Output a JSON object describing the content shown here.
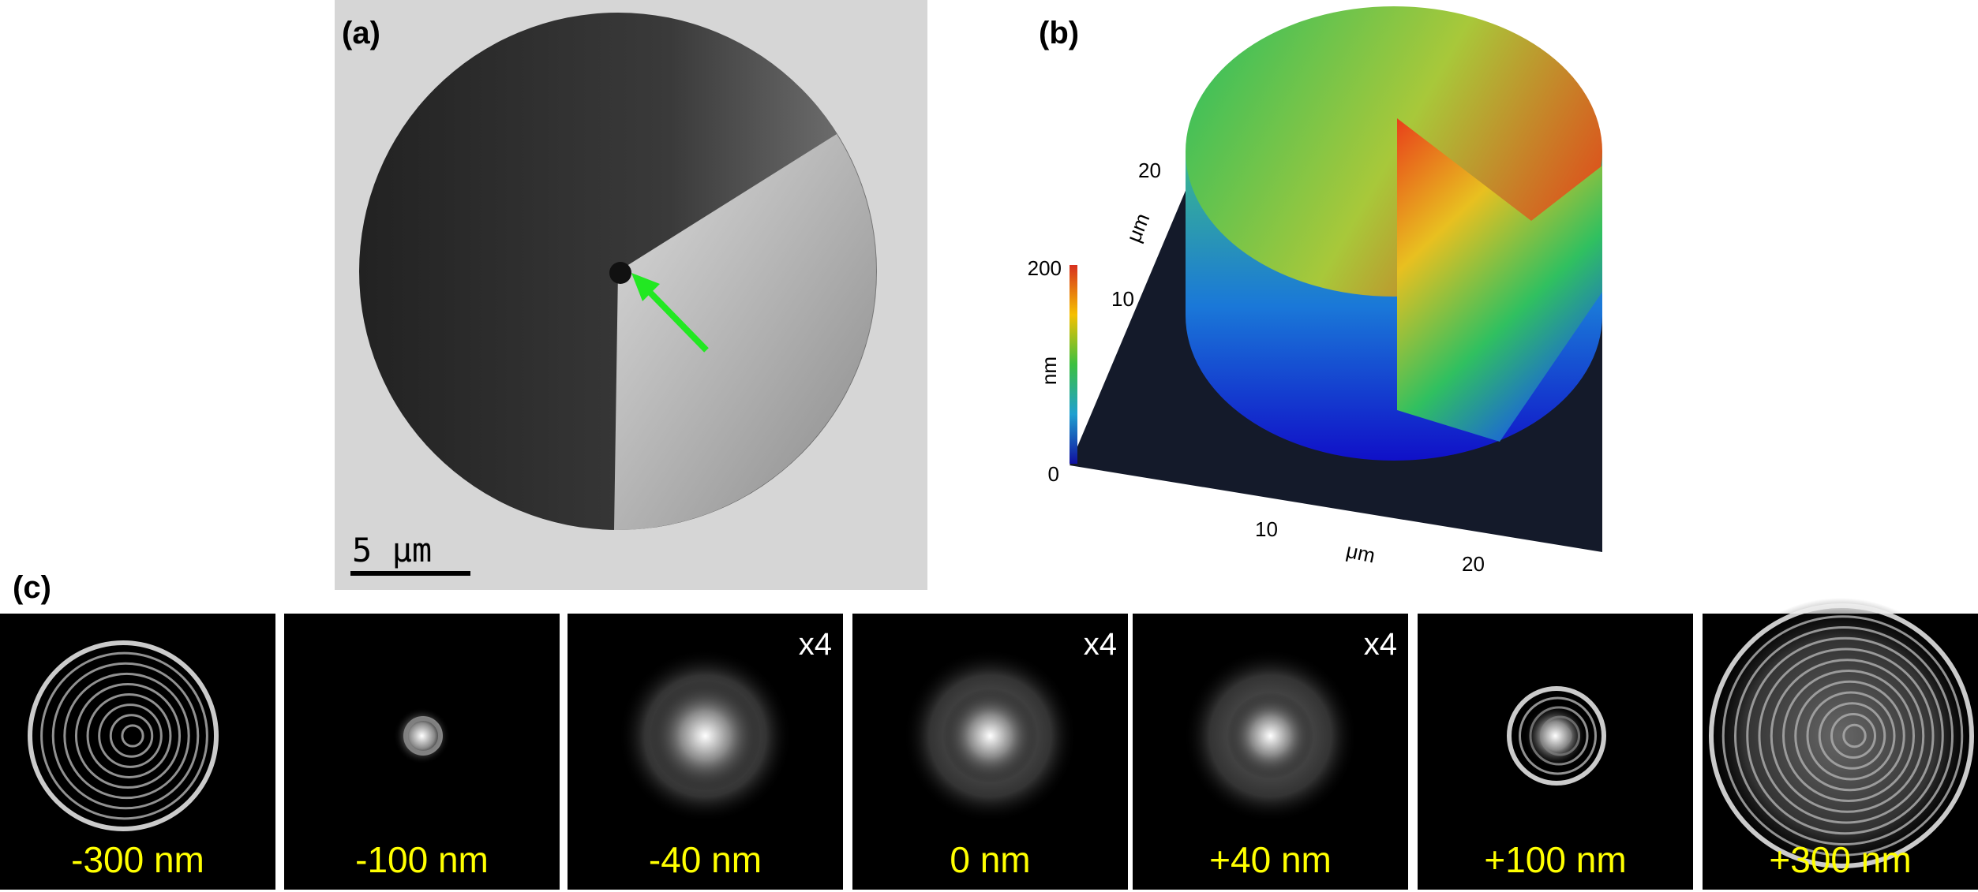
{
  "panels": {
    "a": {
      "label": "(a)",
      "scale_bar": "5 μm"
    },
    "b": {
      "label": "(b)",
      "y_axis": {
        "ticks": [
          "10",
          "20"
        ],
        "label": "μm"
      },
      "x_axis": {
        "ticks": [
          "10",
          "20"
        ],
        "label": "μm"
      },
      "colorbar": {
        "max": "200",
        "min": "0",
        "label": "nm"
      }
    },
    "c": {
      "label": "(c)",
      "tiles": [
        {
          "label": "-300 nm"
        },
        {
          "label": "-100 nm"
        },
        {
          "label": "-40 nm",
          "magnification": "x4"
        },
        {
          "label": "0 nm",
          "magnification": "x4"
        },
        {
          "label": "+40 nm",
          "magnification": "x4"
        },
        {
          "label": "+100 nm"
        },
        {
          "label": "+300 nm"
        }
      ]
    }
  }
}
